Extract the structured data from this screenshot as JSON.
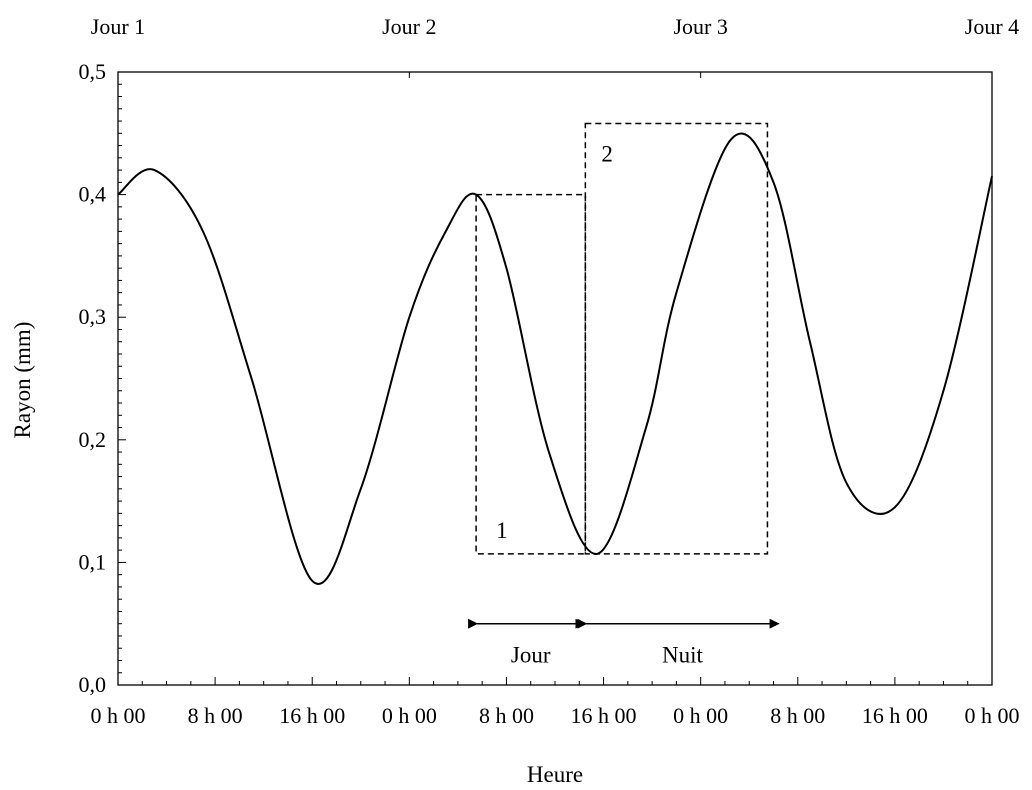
{
  "chart_data": {
    "type": "line",
    "title": "",
    "xlabel": "Heure",
    "ylabel": "Rayon (mm)",
    "xlim": [
      0,
      72
    ],
    "ylim": [
      0,
      0.5
    ],
    "grid": false,
    "y_ticks": [
      0,
      0.1,
      0.2,
      0.3,
      0.4,
      0.5
    ],
    "y_tick_labels": [
      "0,0",
      "0,1",
      "0,2",
      "0,3",
      "0,4",
      "0,5"
    ],
    "x_ticks": [
      0,
      8,
      16,
      24,
      32,
      40,
      48,
      56,
      64,
      72
    ],
    "x_tick_labels": [
      "0 h 00",
      "8 h 00",
      "16 h 00",
      "0 h 00",
      "8 h 00",
      "16 h 00",
      "0 h 00",
      "8 h 00",
      "16 h 00",
      "0 h 00"
    ],
    "top_ticks": [
      0,
      24,
      48,
      72
    ],
    "top_labels": [
      "Jour 1",
      "Jour 2",
      "Jour 3",
      "Jour 4"
    ],
    "series": [
      {
        "x": [
          0,
          3,
          7,
          11,
          16,
          20,
          24,
          27,
          29.5,
          32,
          35.5,
          39.5,
          43.5,
          46,
          50.5,
          54,
          57,
          60,
          64,
          68,
          72
        ],
        "y": [
          0.4,
          0.42,
          0.37,
          0.25,
          0.085,
          0.16,
          0.3,
          0.37,
          0.4,
          0.34,
          0.19,
          0.107,
          0.21,
          0.32,
          0.445,
          0.41,
          0.28,
          0.165,
          0.145,
          0.24,
          0.415
        ]
      }
    ],
    "annotations": {
      "box_1": {
        "x": [
          29.5,
          38.5
        ],
        "y": [
          0.107,
          0.4
        ],
        "label": "1"
      },
      "box_2": {
        "x": [
          38.5,
          53.5
        ],
        "y": [
          0.107,
          0.458
        ],
        "label": "2"
      },
      "arrow_jour": {
        "x": [
          29.5,
          38.5
        ],
        "y": 0.05,
        "label": "Jour"
      },
      "arrow_nuit": {
        "x": [
          38.5,
          54.5
        ],
        "y": 0.05,
        "label": "Nuit"
      }
    }
  }
}
